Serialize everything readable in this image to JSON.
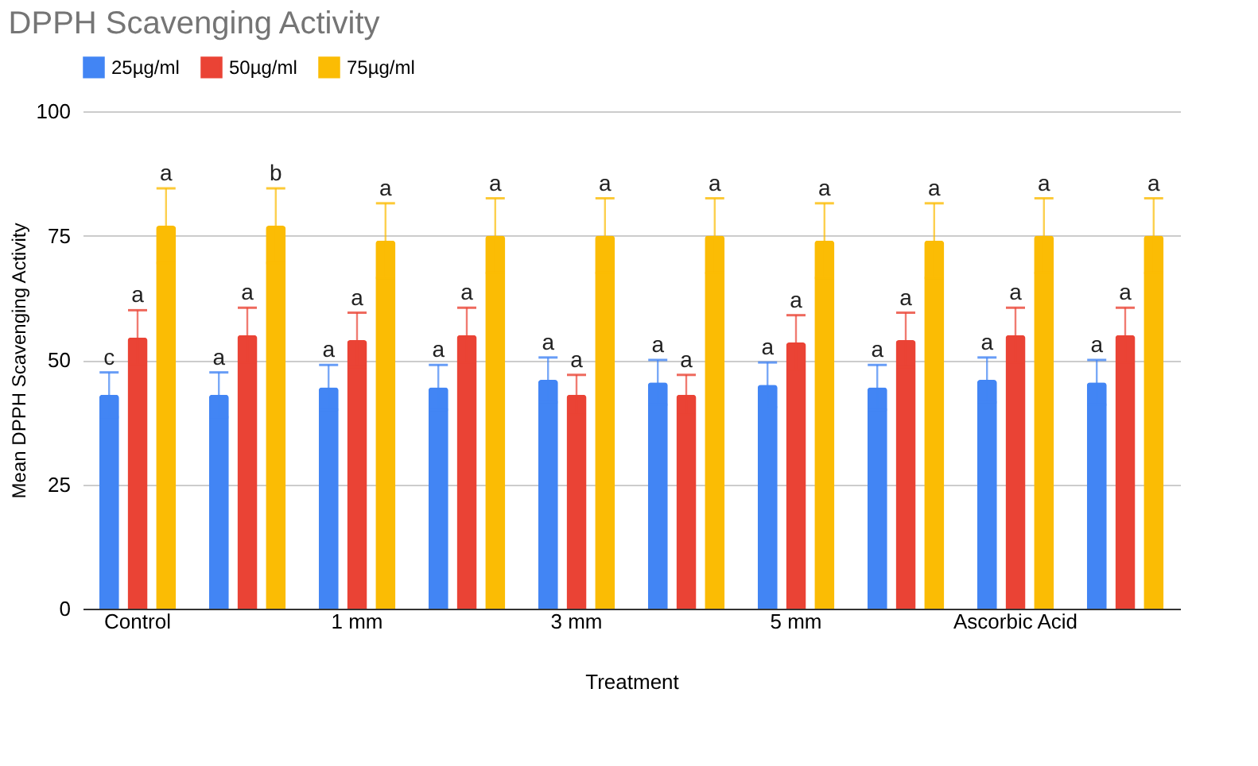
{
  "chart_data": {
    "type": "bar",
    "title": "DPPH Scavenging Activity",
    "xlabel": "Treatment",
    "ylabel": "Mean DPPH Scavenging Activity",
    "categories": [
      "Control",
      null,
      "1 mm",
      null,
      "3 mm",
      null,
      "5 mm",
      null,
      "Ascorbic Acid",
      null
    ],
    "ylim": [
      0,
      100
    ],
    "yticks": [
      0,
      25,
      50,
      75,
      100
    ],
    "grid": "y",
    "legend": "top",
    "series": [
      {
        "name": "25µg/ml",
        "color": "#4285f4",
        "values": [
          43,
          43,
          44.5,
          44.5,
          46,
          45.5,
          45,
          44.5,
          46,
          45.5
        ],
        "errors": [
          4.5,
          4.5,
          4.5,
          4.5,
          4.5,
          4.5,
          4.5,
          4.5,
          4.5,
          4.5
        ],
        "value_labels": [
          "c",
          "a",
          "a",
          "a",
          "a",
          "a",
          "a",
          "a",
          "a",
          "a"
        ]
      },
      {
        "name": "50µg/ml",
        "color": "#ea4335",
        "values": [
          54.5,
          55,
          54,
          55,
          43,
          43,
          53.5,
          54,
          55,
          55
        ],
        "errors": [
          5.5,
          5.5,
          5.5,
          5.5,
          4,
          4,
          5.5,
          5.5,
          5.5,
          5.5
        ],
        "value_labels": [
          "a",
          "a",
          "a",
          "a",
          "a",
          "a",
          "a",
          "a",
          "a",
          "a"
        ]
      },
      {
        "name": "75µg/ml",
        "color": "#fbbc04",
        "values": [
          77,
          77,
          74,
          75,
          75,
          75,
          74,
          74,
          75,
          75
        ],
        "errors": [
          7.5,
          7.5,
          7.5,
          7.5,
          7.5,
          7.5,
          7.5,
          7.5,
          7.5,
          7.5
        ],
        "value_labels": [
          "a",
          "b",
          "a",
          "a",
          "a",
          "a",
          "a",
          "a",
          "a",
          "a"
        ]
      }
    ]
  }
}
